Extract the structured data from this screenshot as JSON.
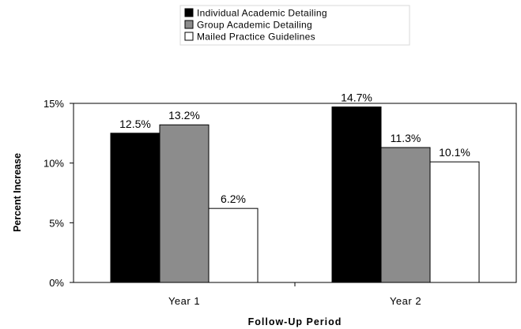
{
  "chart_data": {
    "type": "bar",
    "title": "",
    "xlabel": "Follow-Up Period",
    "ylabel": "Percent Increase",
    "categories": [
      "Year 1",
      "Year 2"
    ],
    "ylim": [
      0,
      15
    ],
    "yticks": [
      "0%",
      "5%",
      "10%",
      "15%"
    ],
    "ytick_values": [
      0,
      5,
      10,
      15
    ],
    "grid": false,
    "legend_position": "top-center",
    "series": [
      {
        "name": "Individual Academic Detailing",
        "values": [
          12.5,
          14.7
        ],
        "labels": [
          "12.5%",
          "14.7%"
        ],
        "color": "#000000"
      },
      {
        "name": "Group Academic Detailing",
        "values": [
          13.2,
          11.3
        ],
        "labels": [
          "13.2%",
          "11.3%"
        ],
        "color": "#8c8c8c"
      },
      {
        "name": "Mailed Practice Guidelines",
        "values": [
          6.2,
          10.1
        ],
        "labels": [
          "6.2%",
          "10.1%"
        ],
        "color": "#ffffff"
      }
    ]
  }
}
